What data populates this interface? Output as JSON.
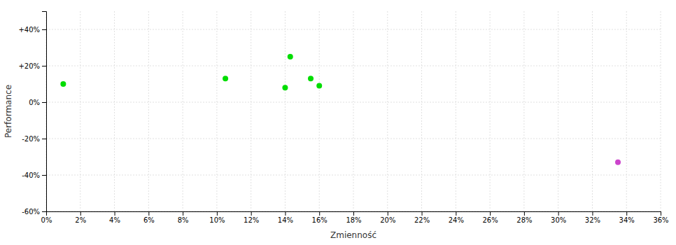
{
  "chart_data": {
    "type": "scatter",
    "xlabel": "Zmienność",
    "ylabel": "Performance",
    "xlim": [
      0.0,
      0.36
    ],
    "ylim": [
      -0.6,
      0.5
    ],
    "xticks": [
      {
        "value": 0,
        "label": "0%"
      },
      {
        "value": 0.02,
        "label": "2%"
      },
      {
        "value": 0.04,
        "label": "4%"
      },
      {
        "value": 0.06,
        "label": "6%"
      },
      {
        "value": 0.08,
        "label": "8%"
      },
      {
        "value": 0.1,
        "label": "10%"
      },
      {
        "value": 0.12,
        "label": "12%"
      },
      {
        "value": 0.14,
        "label": "14%"
      },
      {
        "value": 0.16,
        "label": "16%"
      },
      {
        "value": 0.18,
        "label": "18%"
      },
      {
        "value": 0.2,
        "label": "20%"
      },
      {
        "value": 0.22,
        "label": "22%"
      },
      {
        "value": 0.24,
        "label": "24%"
      },
      {
        "value": 0.26,
        "label": "26%"
      },
      {
        "value": 0.28,
        "label": "28%"
      },
      {
        "value": 0.3,
        "label": "30%"
      },
      {
        "value": 0.32,
        "label": "32%"
      },
      {
        "value": 0.34,
        "label": "34%"
      },
      {
        "value": 0.36,
        "label": "36%"
      }
    ],
    "yticks": [
      {
        "value": -0.6,
        "label": "-60%"
      },
      {
        "value": -0.4,
        "label": "-40%"
      },
      {
        "value": -0.2,
        "label": "-20%"
      },
      {
        "value": 0,
        "label": "0%"
      },
      {
        "value": 0.2,
        "label": "+20%"
      },
      {
        "value": 0.4,
        "label": "+40%"
      }
    ],
    "grid": true,
    "series": [
      {
        "color": "#00dd00",
        "x": [
          0.01,
          0.105,
          0.14,
          0.143,
          0.155,
          0.16
        ],
        "values": [
          0.1,
          0.13,
          0.08,
          0.25,
          0.13,
          0.09
        ]
      },
      {
        "color": "#cc44cc",
        "x": [
          0.335
        ],
        "values": [
          -0.33
        ]
      }
    ]
  }
}
